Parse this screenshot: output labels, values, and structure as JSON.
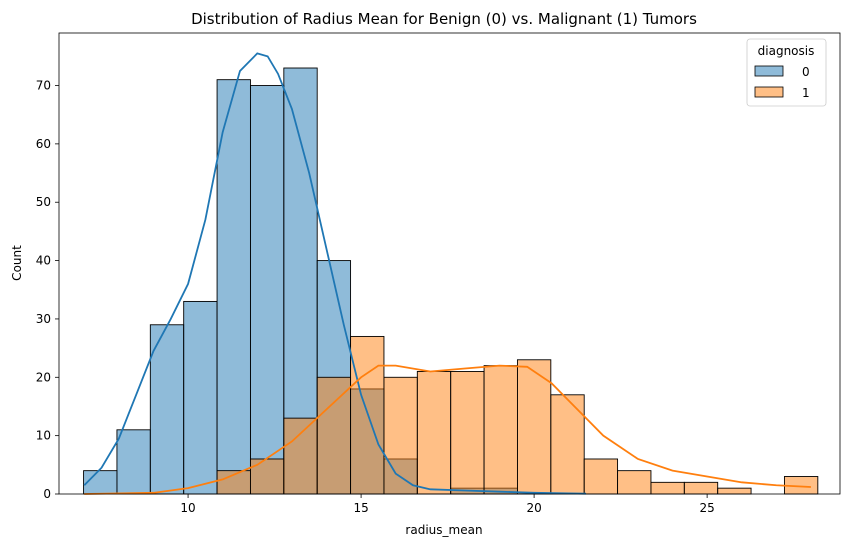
{
  "chart_data": {
    "type": "histogram",
    "title": "Distribution of Radius Mean for Benign (0) vs. Malignant (1) Tumors",
    "xlabel": "radius_mean",
    "ylabel": "Count",
    "xlim": [
      6.27,
      28.84
    ],
    "ylim": [
      0,
      79
    ],
    "xticks": [
      10,
      15,
      20,
      25
    ],
    "yticks": [
      0,
      10,
      20,
      30,
      40,
      50,
      60,
      70
    ],
    "bin_start": 6.98,
    "bin_width": 0.9645,
    "legend": {
      "title": "diagnosis",
      "placement": "top-right"
    },
    "series": [
      {
        "name": "0",
        "color": "#1f77b4",
        "counts": [
          4,
          11,
          29,
          33,
          71,
          70,
          73,
          40,
          18,
          6,
          0,
          1,
          1,
          0,
          0,
          0,
          0,
          0,
          0,
          0,
          0,
          0
        ],
        "kde_x": [
          7.0,
          7.5,
          8.0,
          8.5,
          9.0,
          9.5,
          10.0,
          10.5,
          11.0,
          11.5,
          12.0,
          12.3,
          12.6,
          13.0,
          13.5,
          14.0,
          14.5,
          15.0,
          15.5,
          16.0,
          16.5,
          17.0,
          18.0,
          19.0,
          20.0,
          21.0,
          21.5
        ],
        "kde_y": [
          1.5,
          4.5,
          9.5,
          17.0,
          24.5,
          30.0,
          36.0,
          47.0,
          62.0,
          72.5,
          75.5,
          75.0,
          72.0,
          66.0,
          55.0,
          42.0,
          29.0,
          17.0,
          8.5,
          3.5,
          1.5,
          0.8,
          0.6,
          0.4,
          0.2,
          0.1,
          0.05
        ]
      },
      {
        "name": "1",
        "color": "#ff7f0e",
        "counts": [
          0,
          0,
          0,
          0,
          4,
          6,
          13,
          20,
          27,
          20,
          21,
          21,
          22,
          23,
          17,
          6,
          4,
          2,
          2,
          1,
          0,
          3
        ],
        "kde_x": [
          7.0,
          9.0,
          10.0,
          11.0,
          12.0,
          13.0,
          14.0,
          15.0,
          15.5,
          16.0,
          17.0,
          18.0,
          19.0,
          19.8,
          20.5,
          21.0,
          22.0,
          23.0,
          24.0,
          25.0,
          26.0,
          27.0,
          28.0
        ],
        "kde_y": [
          0.0,
          0.2,
          1.0,
          2.5,
          5.0,
          9.0,
          14.5,
          20.0,
          22.0,
          22.0,
          21.0,
          21.5,
          22.0,
          21.8,
          19.0,
          16.0,
          10.0,
          6.0,
          4.0,
          3.0,
          2.0,
          1.5,
          1.2
        ]
      }
    ]
  }
}
